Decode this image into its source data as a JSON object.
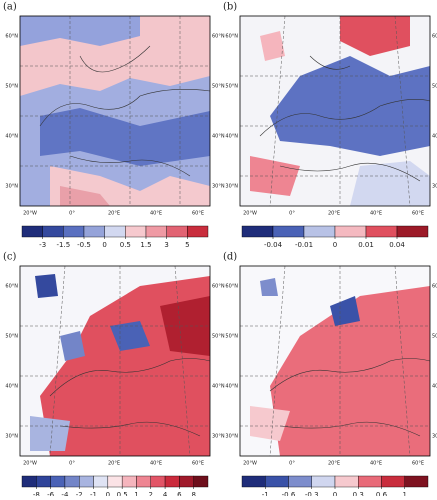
{
  "panels": [
    {
      "label": "(a)",
      "levels": [
        -3,
        -1.5,
        -0.5,
        0,
        0.5,
        1.5,
        3,
        5
      ],
      "colors": [
        "#1f2d7a",
        "#34499e",
        "#5a70c0",
        "#95a3d9",
        "#d2d8f0",
        "#f6c9ce",
        "#ef9aa4",
        "#e26373",
        "#c92d3d"
      ]
    },
    {
      "label": "(b)",
      "levels": [
        -0.04,
        -0.01,
        0,
        0.01,
        0.04
      ],
      "colors": [
        "#1f2d7a",
        "#4a62b6",
        "#b8c2e6",
        "#f4b9c0",
        "#e0505f",
        "#9c1a28"
      ]
    },
    {
      "label": "(c)",
      "levels": [
        -8,
        -6,
        -4,
        -2,
        -1,
        0,
        0.5,
        1,
        2,
        4,
        6,
        8
      ],
      "colors": [
        "#1f2d7a",
        "#2f449a",
        "#4a62b6",
        "#7385c8",
        "#a8b4e0",
        "#dfe3f4",
        "#fbe3e6",
        "#f5b5bd",
        "#ee8592",
        "#e25567",
        "#cb2a3c",
        "#a01a2b",
        "#6e0f1c"
      ]
    },
    {
      "label": "(d)",
      "levels": [
        -1,
        -0.6,
        -0.3,
        0,
        0.3,
        0.6,
        1
      ],
      "colors": [
        "#1f2d7a",
        "#3a52a8",
        "#7d8dcc",
        "#d0d6ef",
        "#f6c9ce",
        "#e86a78",
        "#c92d3d",
        "#7e1220"
      ]
    }
  ],
  "lat_labels": [
    "60°N",
    "50°N",
    "40°N",
    "30°N"
  ],
  "lon_labels": [
    "20°W",
    "0°",
    "20°E",
    "40°E",
    "60°E"
  ]
}
